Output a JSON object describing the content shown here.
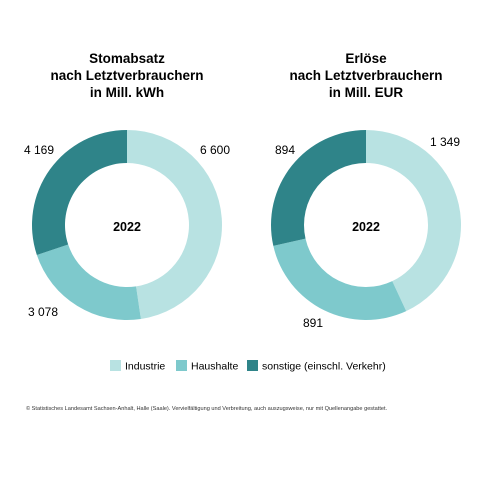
{
  "colors": {
    "industrie": "#b8e2e2",
    "haushalte": "#7ec9cc",
    "sonstige": "#2f8489"
  },
  "legend": {
    "industrie": "Industrie",
    "haushalte": "Haushalte",
    "sonstige": "sonstige (einschl. Verkehr)"
  },
  "chart_data": [
    {
      "type": "pie",
      "variant": "donut",
      "title_lines": [
        "Stomabsatz",
        "nach Letztverbrauchern",
        "in Mill. kWh"
      ],
      "center_label": "2022",
      "slices": [
        {
          "name": "Industrie",
          "value": 6600,
          "label": "6 600"
        },
        {
          "name": "Haushalte",
          "value": 3078,
          "label": "3 078"
        },
        {
          "name": "sonstige (einschl. Verkehr)",
          "value": 4169,
          "label": "4 169"
        }
      ],
      "start": "top",
      "direction": "clockwise",
      "legend_position": "bottom"
    },
    {
      "type": "pie",
      "variant": "donut",
      "title_lines": [
        "Erlöse",
        "nach Letztverbrauchern",
        "in Mill. EUR"
      ],
      "center_label": "2022",
      "slices": [
        {
          "name": "Industrie",
          "value": 1349,
          "label": "1 349"
        },
        {
          "name": "Haushalte",
          "value": 891,
          "label": "891"
        },
        {
          "name": "sonstige (einschl. Verkehr)",
          "value": 894,
          "label": "894"
        }
      ],
      "start": "top",
      "direction": "clockwise",
      "legend_position": "bottom"
    }
  ],
  "footer": "© Statistisches Landesamt Sachsen-Anhalt, Halle (Saale). Vervielfältigung und Verbreitung, auch auszugsweise, nur mit Quellenangabe gestattet."
}
